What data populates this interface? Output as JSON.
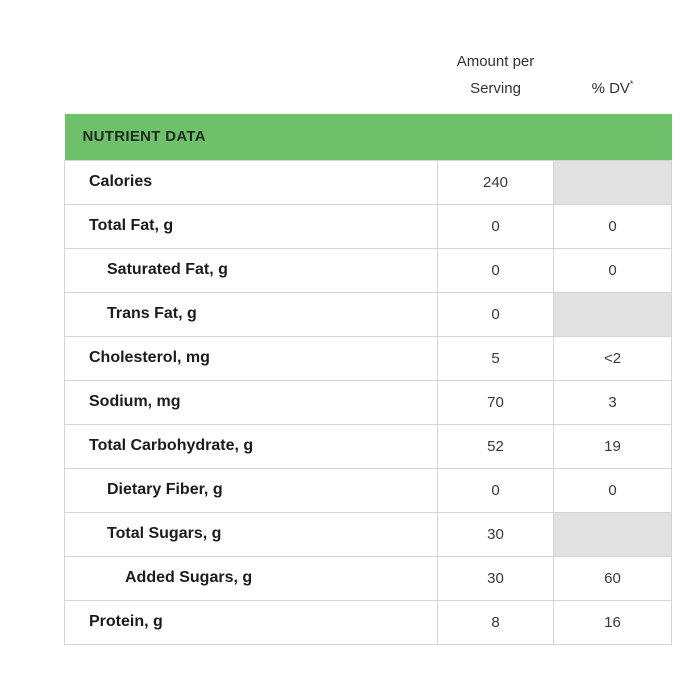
{
  "header": {
    "amount_label": "Amount per Serving",
    "dv_label": "% DV",
    "dv_superscript": "*"
  },
  "table": {
    "section_title": "NUTRIENT DATA",
    "colors": {
      "section_header_bg": "#6ec16a",
      "disabled_cell_bg": "#e1e1e1",
      "border": "#d5d5d5"
    },
    "rows": [
      {
        "label": "Calories",
        "amount": "240",
        "dv": null,
        "indent": 0
      },
      {
        "label": "Total Fat, g",
        "amount": "0",
        "dv": "0",
        "indent": 0
      },
      {
        "label": "Saturated Fat, g",
        "amount": "0",
        "dv": "0",
        "indent": 1
      },
      {
        "label": "Trans Fat, g",
        "amount": "0",
        "dv": null,
        "indent": 1
      },
      {
        "label": "Cholesterol, mg",
        "amount": "5",
        "dv": "<2",
        "indent": 0
      },
      {
        "label": "Sodium, mg",
        "amount": "70",
        "dv": "3",
        "indent": 0
      },
      {
        "label": "Total Carbohydrate, g",
        "amount": "52",
        "dv": "19",
        "indent": 0
      },
      {
        "label": "Dietary Fiber, g",
        "amount": "0",
        "dv": "0",
        "indent": 1
      },
      {
        "label": "Total Sugars, g",
        "amount": "30",
        "dv": null,
        "indent": 1
      },
      {
        "label": "Added Sugars, g",
        "amount": "30",
        "dv": "60",
        "indent": 2
      },
      {
        "label": "Protein, g",
        "amount": "8",
        "dv": "16",
        "indent": 0
      }
    ]
  }
}
